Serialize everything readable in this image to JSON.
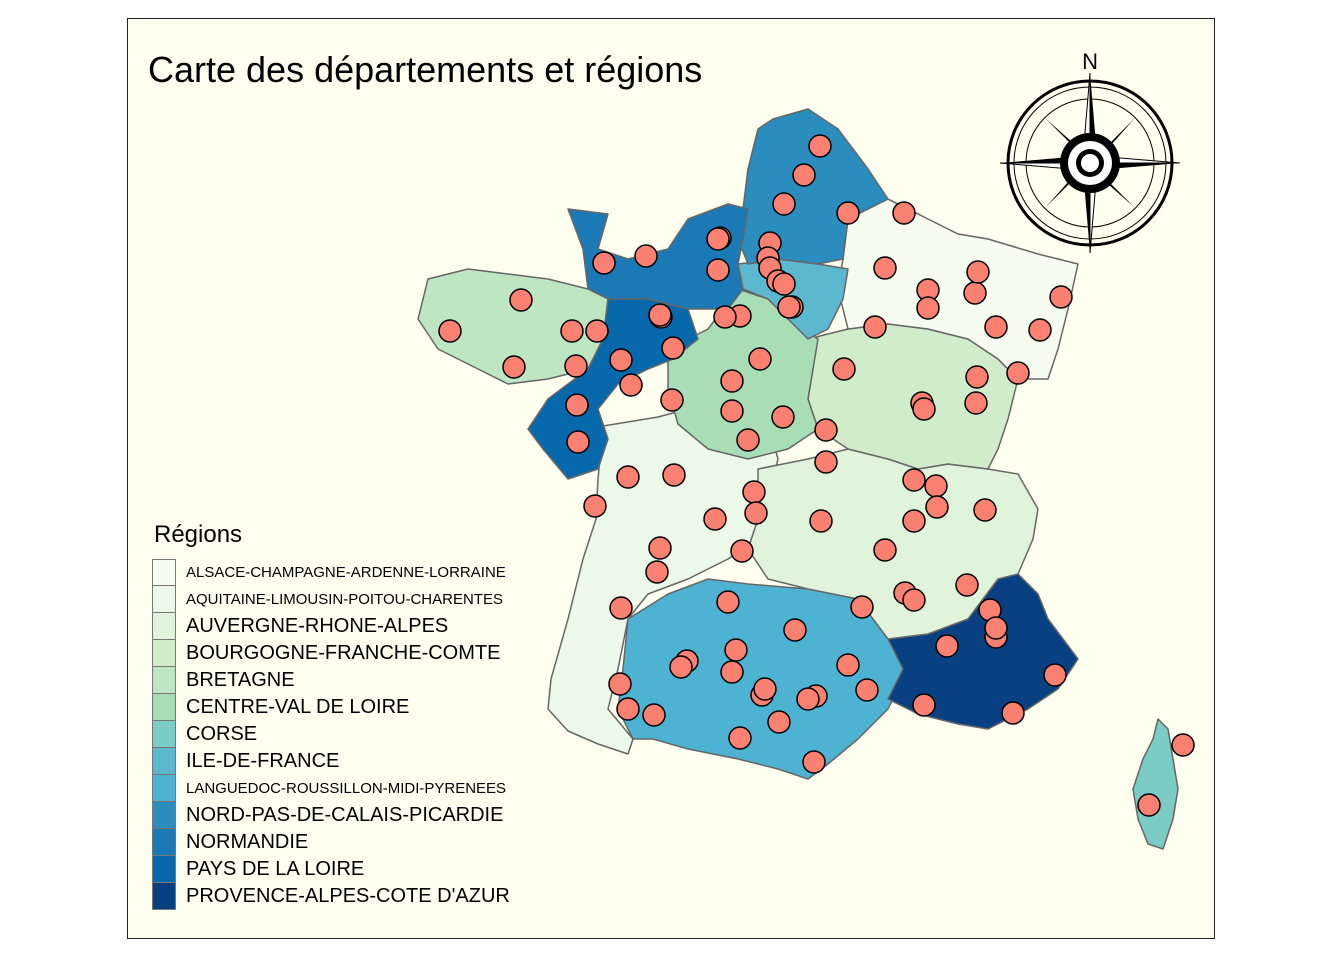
{
  "title": "Carte des départements et régions",
  "compass": {
    "north_label": "N"
  },
  "legend": {
    "title": "Régions",
    "items": [
      {
        "label": "ALSACE-CHAMPAGNE-ARDENNE-LORRAINE",
        "color": "#f7fcf0"
      },
      {
        "label": "AQUITAINE-LIMOUSIN-POITOU-CHARENTES",
        "color": "#ecf8e8"
      },
      {
        "label": "AUVERGNE-RHONE-ALPES",
        "color": "#e0f3db"
      },
      {
        "label": "BOURGOGNE-FRANCHE-COMTE",
        "color": "#d0eccb"
      },
      {
        "label": "BRETAGNE",
        "color": "#bfe6c3"
      },
      {
        "label": "CENTRE-VAL DE LOIRE",
        "color": "#a8ddb5"
      },
      {
        "label": "CORSE",
        "color": "#7bccc4"
      },
      {
        "label": "ILE-DE-FRANCE",
        "color": "#5cb8cf"
      },
      {
        "label": "LANGUEDOC-ROUSSILLON-MIDI-PYRENEES",
        "color": "#4eb3d3"
      },
      {
        "label": "NORD-PAS-DE-CALAIS-PICARDIE",
        "color": "#2b8cbe"
      },
      {
        "label": "NORMANDIE",
        "color": "#1b7ab6"
      },
      {
        "label": "PAYS DE LA LOIRE",
        "color": "#0868ac"
      },
      {
        "label": "PROVENCE-ALPES-COTE D'AZUR",
        "color": "#084081"
      }
    ]
  },
  "marker_style": {
    "fill": "#fa8072",
    "stroke": "#000000"
  },
  "border_color": "#666666",
  "background_color": "#fffff0"
}
